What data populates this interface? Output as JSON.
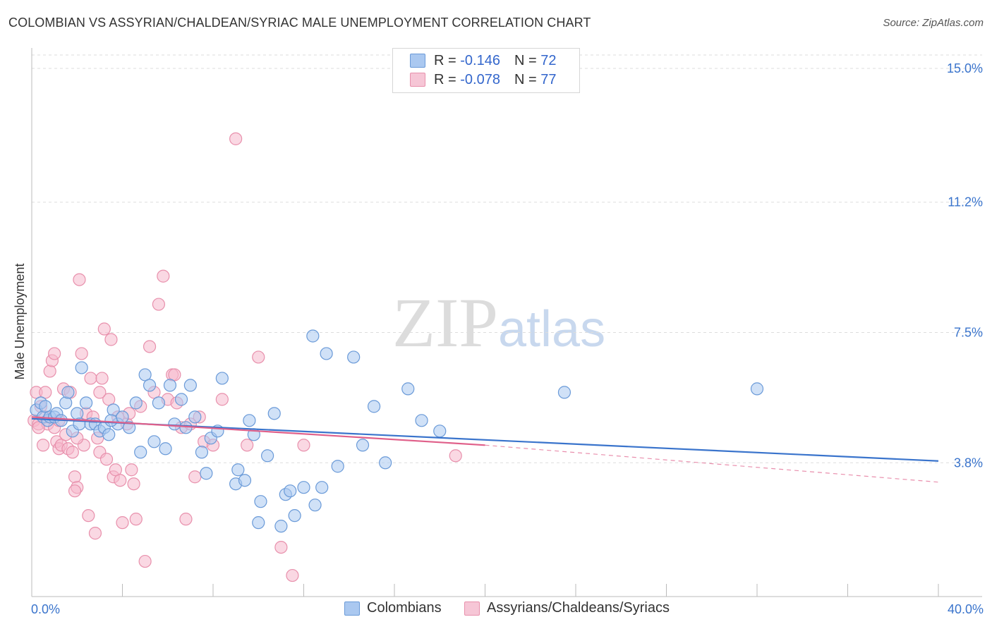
{
  "title": "COLOMBIAN VS ASSYRIAN/CHALDEAN/SYRIAC MALE UNEMPLOYMENT CORRELATION CHART",
  "source": "Source: ZipAtlas.com",
  "watermark": {
    "zip": "ZIP",
    "atlas": "atlas"
  },
  "legend": {
    "rows": [
      {
        "r_label": "R =",
        "r_value": "-0.146",
        "n_label": "N =",
        "n_value": "72"
      },
      {
        "r_label": "R =",
        "r_value": "-0.078",
        "n_label": "N =",
        "n_value": "77"
      }
    ]
  },
  "colors": {
    "colombians_fill": "#aac8f0",
    "colombians_stroke": "#6a9ad8",
    "colombians_line": "#3a74cc",
    "assyrians_fill": "#f6b8cc",
    "assyrians_stroke": "#e890ac",
    "assyrians_line": "#e0608a",
    "tick_label": "#3a74cc",
    "grid": "#dddddd"
  },
  "chart_data": {
    "type": "scatter",
    "title": "COLOMBIAN VS ASSYRIAN/CHALDEAN/SYRIAC MALE UNEMPLOYMENT CORRELATION CHART",
    "xlabel": "",
    "ylabel": "Male Unemployment",
    "xlim": [
      0,
      40
    ],
    "ylim": [
      0,
      15.5
    ],
    "x_tick_labels": [
      "0.0%",
      "40.0%"
    ],
    "y_ticks": [
      3.8,
      7.5,
      11.2,
      15.0
    ],
    "y_tick_labels": [
      "3.8%",
      "7.5%",
      "11.2%",
      "15.0%"
    ],
    "grid": true,
    "legend_position": "top-center",
    "series": [
      {
        "name": "Colombians",
        "r": -0.146,
        "n": 72,
        "trend": {
          "x0": 0,
          "y0": 5.05,
          "x1": 40,
          "y1": 3.85
        },
        "points": [
          [
            0.2,
            5.3
          ],
          [
            0.4,
            5.5
          ],
          [
            0.5,
            5.1
          ],
          [
            0.6,
            5.4
          ],
          [
            0.7,
            5.0
          ],
          [
            0.8,
            5.1
          ],
          [
            1.0,
            5.1
          ],
          [
            1.1,
            5.2
          ],
          [
            1.3,
            5.0
          ],
          [
            1.5,
            5.5
          ],
          [
            1.6,
            5.8
          ],
          [
            1.8,
            4.7
          ],
          [
            2.0,
            5.2
          ],
          [
            2.1,
            4.9
          ],
          [
            2.4,
            5.5
          ],
          [
            2.6,
            4.9
          ],
          [
            2.8,
            4.9
          ],
          [
            3.0,
            4.7
          ],
          [
            3.2,
            4.8
          ],
          [
            3.4,
            4.6
          ],
          [
            3.6,
            5.3
          ],
          [
            3.8,
            4.9
          ],
          [
            4.0,
            5.1
          ],
          [
            4.3,
            4.8
          ],
          [
            4.6,
            5.5
          ],
          [
            4.8,
            4.1
          ],
          [
            5.0,
            6.3
          ],
          [
            5.2,
            6.0
          ],
          [
            5.4,
            4.4
          ],
          [
            5.6,
            5.5
          ],
          [
            5.9,
            4.2
          ],
          [
            6.1,
            6.0
          ],
          [
            6.3,
            4.9
          ],
          [
            6.6,
            5.6
          ],
          [
            6.8,
            4.8
          ],
          [
            7.0,
            6.0
          ],
          [
            7.2,
            5.1
          ],
          [
            7.5,
            4.1
          ],
          [
            7.7,
            3.5
          ],
          [
            7.9,
            4.5
          ],
          [
            8.2,
            4.7
          ],
          [
            8.4,
            6.2
          ],
          [
            9.0,
            3.2
          ],
          [
            9.1,
            3.6
          ],
          [
            9.4,
            3.3
          ],
          [
            9.6,
            5.0
          ],
          [
            9.8,
            4.6
          ],
          [
            10.1,
            2.7
          ],
          [
            10.4,
            4.0
          ],
          [
            10.7,
            5.2
          ],
          [
            11.2,
            2.9
          ],
          [
            11.4,
            3.0
          ],
          [
            11.6,
            2.3
          ],
          [
            12.0,
            3.1
          ],
          [
            12.4,
            7.4
          ],
          [
            12.8,
            3.1
          ],
          [
            13.0,
            6.9
          ],
          [
            13.5,
            3.7
          ],
          [
            14.2,
            6.8
          ],
          [
            14.6,
            4.3
          ],
          [
            15.1,
            5.4
          ],
          [
            15.6,
            3.8
          ],
          [
            16.6,
            5.9
          ],
          [
            17.2,
            5.0
          ],
          [
            18.0,
            4.7
          ],
          [
            23.5,
            5.8
          ],
          [
            32.0,
            5.9
          ],
          [
            10.0,
            2.1
          ],
          [
            11.0,
            2.0
          ],
          [
            12.5,
            2.6
          ],
          [
            3.5,
            5.0
          ],
          [
            2.2,
            6.5
          ]
        ]
      },
      {
        "name": "Assyrians/Chaldeans/Syriacs",
        "r": -0.078,
        "n": 77,
        "trend": {
          "x0": 0,
          "y0": 5.1,
          "x1": 20,
          "y1": 4.3,
          "dashed_to_x": 40,
          "dashed_to_y": 3.25
        },
        "points": [
          [
            0.1,
            5.0
          ],
          [
            0.2,
            5.8
          ],
          [
            0.3,
            4.9
          ],
          [
            0.4,
            5.4
          ],
          [
            0.5,
            4.3
          ],
          [
            0.6,
            5.1
          ],
          [
            0.7,
            4.9
          ],
          [
            0.8,
            6.4
          ],
          [
            0.9,
            6.7
          ],
          [
            1.0,
            6.9
          ],
          [
            1.1,
            4.4
          ],
          [
            1.2,
            4.2
          ],
          [
            1.3,
            4.3
          ],
          [
            1.4,
            5.9
          ],
          [
            1.5,
            4.6
          ],
          [
            1.6,
            4.2
          ],
          [
            1.7,
            5.8
          ],
          [
            1.8,
            4.1
          ],
          [
            1.9,
            3.4
          ],
          [
            2.0,
            3.1
          ],
          [
            2.1,
            9.0
          ],
          [
            2.2,
            6.9
          ],
          [
            2.3,
            4.3
          ],
          [
            2.4,
            5.2
          ],
          [
            2.5,
            2.3
          ],
          [
            2.6,
            6.2
          ],
          [
            2.7,
            5.1
          ],
          [
            2.8,
            1.8
          ],
          [
            2.9,
            4.5
          ],
          [
            3.0,
            4.1
          ],
          [
            3.1,
            6.2
          ],
          [
            3.2,
            7.6
          ],
          [
            3.3,
            3.9
          ],
          [
            3.4,
            5.6
          ],
          [
            3.5,
            7.3
          ],
          [
            3.6,
            3.4
          ],
          [
            3.7,
            3.6
          ],
          [
            3.8,
            5.1
          ],
          [
            3.9,
            3.3
          ],
          [
            4.0,
            2.1
          ],
          [
            4.2,
            4.9
          ],
          [
            4.3,
            5.2
          ],
          [
            4.4,
            3.6
          ],
          [
            4.5,
            3.2
          ],
          [
            4.6,
            2.2
          ],
          [
            4.8,
            5.4
          ],
          [
            5.0,
            1.0
          ],
          [
            5.2,
            7.1
          ],
          [
            5.4,
            5.8
          ],
          [
            5.6,
            8.3
          ],
          [
            5.8,
            9.1
          ],
          [
            6.0,
            5.6
          ],
          [
            6.2,
            6.3
          ],
          [
            6.4,
            5.5
          ],
          [
            6.6,
            4.8
          ],
          [
            6.8,
            2.2
          ],
          [
            7.0,
            4.9
          ],
          [
            7.2,
            3.4
          ],
          [
            7.4,
            5.1
          ],
          [
            7.6,
            4.4
          ],
          [
            8.0,
            4.3
          ],
          [
            8.4,
            5.6
          ],
          [
            9.0,
            13.0
          ],
          [
            9.5,
            4.3
          ],
          [
            10.0,
            6.8
          ],
          [
            11.0,
            1.4
          ],
          [
            11.5,
            0.6
          ],
          [
            12.0,
            4.3
          ],
          [
            18.7,
            4.0
          ],
          [
            1.0,
            4.8
          ],
          [
            1.2,
            5.0
          ],
          [
            0.6,
            5.8
          ],
          [
            0.3,
            4.8
          ],
          [
            1.9,
            3.0
          ],
          [
            3.0,
            5.8
          ],
          [
            2.0,
            4.5
          ],
          [
            6.3,
            6.3
          ]
        ]
      }
    ]
  },
  "bottom_legend": [
    "Colombians",
    "Assyrians/Chaldeans/Syriacs"
  ]
}
